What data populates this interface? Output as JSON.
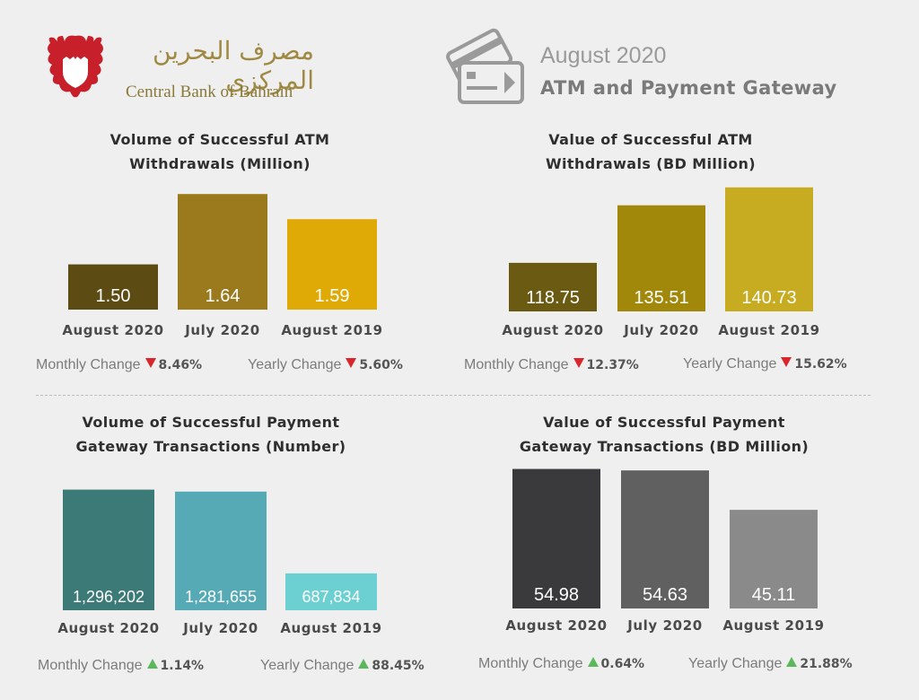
{
  "header": {
    "arabic_name": "مصرف البحرين المركزي",
    "bank_name": "Central Bank of Bahrain",
    "report_date": "August 2020",
    "report_title": "ATM and Payment Gateway",
    "icon_name": "credit-card-icon"
  },
  "chart_data": [
    {
      "type": "bar",
      "title_line1": "Volume of  Successful ATM",
      "title_line2": "Withdrawals (Million)",
      "categories": [
        "August 2020",
        "July 2020",
        "August 2019"
      ],
      "values": [
        1.5,
        1.64,
        1.59
      ],
      "value_labels": [
        "1.50",
        "1.64",
        "1.59"
      ],
      "colors": [
        "#5c4b13",
        "#9b7a1e",
        "#e0aa06"
      ],
      "ylim": [
        1.41,
        1.66
      ],
      "changes": {
        "monthly_label": "Monthly Change",
        "monthly_value": "8.46%",
        "monthly_dir": "down",
        "yearly_label": "Yearly Change",
        "yearly_value": "5.60%",
        "yearly_dir": "down"
      }
    },
    {
      "type": "bar",
      "title_line1": "Value of Successful ATM",
      "title_line2": "Withdrawals (BD Million)",
      "categories": [
        "August 2020",
        "July 2020",
        "August 2019"
      ],
      "values": [
        118.75,
        135.51,
        140.73
      ],
      "value_labels": [
        "118.75",
        "135.51",
        "140.73"
      ],
      "colors": [
        "#6a5a12",
        "#a1880a",
        "#c7ac22"
      ],
      "ylim": [
        104.6,
        141.2
      ],
      "changes": {
        "monthly_label": "Monthly Change",
        "monthly_value": "12.37%",
        "monthly_dir": "down",
        "yearly_label": "Yearly Change",
        "yearly_value": "15.62%",
        "yearly_dir": "down"
      }
    },
    {
      "type": "bar",
      "title_line1": "Volume of Successful Payment",
      "title_line2": "Gateway Transactions (Number)",
      "categories": [
        "August 2020",
        "July 2020",
        "August 2019"
      ],
      "values": [
        1296202,
        1281655,
        687834
      ],
      "value_labels": [
        "1,296,202",
        "1,281,655",
        "687,834"
      ],
      "colors": [
        "#3b7a76",
        "#55aab5",
        "#6cd0d2"
      ],
      "ylim": [
        420000,
        1300000
      ],
      "changes": {
        "monthly_label": "Monthly Change",
        "monthly_value": "1.14%",
        "monthly_dir": "up",
        "yearly_label": "Yearly Change",
        "yearly_value": "88.45%",
        "yearly_dir": "up"
      }
    },
    {
      "type": "bar",
      "title_line1": "Value of Successful Payment",
      "title_line2": "Gateway Transactions (BD Million)",
      "categories": [
        "August 2020",
        "July 2020",
        "August 2019"
      ],
      "values": [
        54.98,
        54.63,
        45.11
      ],
      "value_labels": [
        "54.98",
        "54.63",
        "45.11"
      ],
      "colors": [
        "#3a3a3c",
        "#606060",
        "#8a8a8a"
      ],
      "ylim": [
        21.3,
        55.1
      ],
      "changes": {
        "monthly_label": "Monthly Change",
        "monthly_value": "0.64%",
        "monthly_dir": "up",
        "yearly_label": "Yearly Change",
        "yearly_value": "21.88%",
        "yearly_dir": "up"
      }
    }
  ]
}
